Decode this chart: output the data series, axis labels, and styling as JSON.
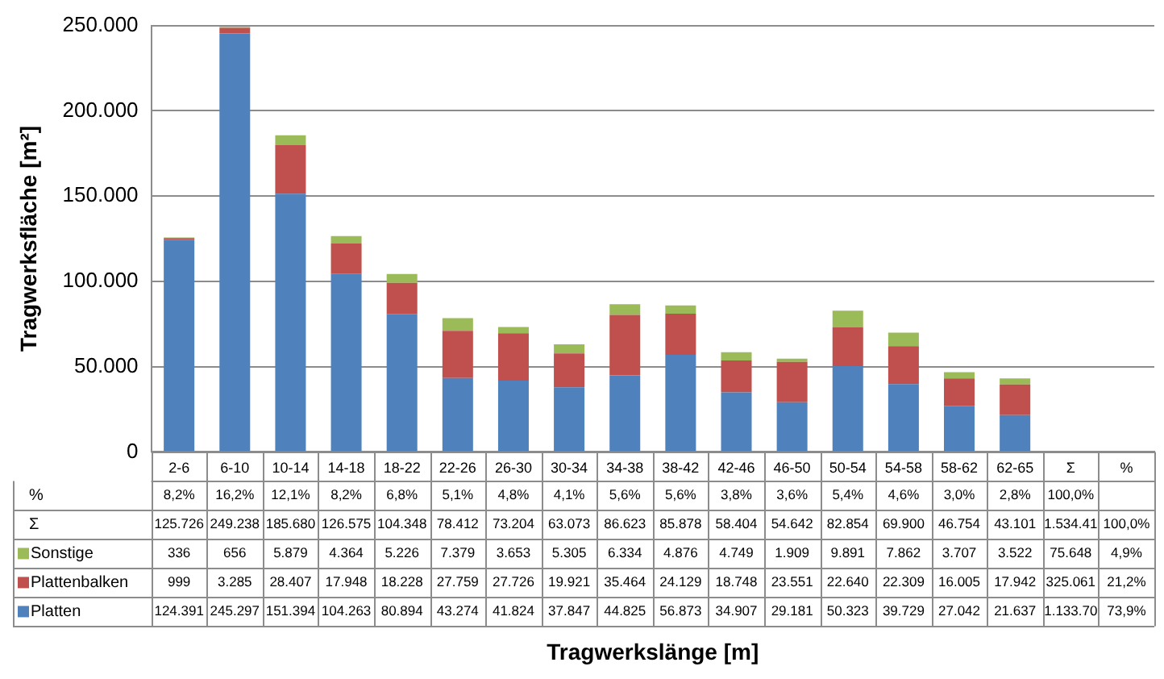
{
  "chart_data": {
    "type": "bar",
    "stacked": true,
    "ylabel": "Tragwerksfläche [m²]",
    "categories": [
      "2-6",
      "6-10",
      "10-14",
      "14-18",
      "18-22",
      "22-26",
      "26-30",
      "30-34",
      "34-38",
      "38-42",
      "42-46",
      "46-50",
      "50-54",
      "54-58",
      "58-62",
      "62-65",
      "Σ",
      "%"
    ],
    "series": [
      {
        "name": "Platten",
        "color": "#4f81bd",
        "values": [
          124391,
          245297,
          151394,
          104263,
          80894,
          43274,
          41824,
          37847,
          44825,
          56873,
          34907,
          29181,
          50323,
          39729,
          27042,
          21637,
          null,
          null
        ],
        "value_labels": [
          "124.391",
          "245.297",
          "151.394",
          "104.263",
          "80.894",
          "43.274",
          "41.824",
          "37.847",
          "44.825",
          "56.873",
          "34.907",
          "29.181",
          "50.323",
          "39.729",
          "27.042",
          "21.637",
          "1.133.70",
          "73,9%"
        ]
      },
      {
        "name": "Plattenbalken",
        "color": "#c0504d",
        "values": [
          999,
          3285,
          28407,
          17948,
          18228,
          27759,
          27726,
          19921,
          35464,
          24129,
          18748,
          23551,
          22640,
          22309,
          16005,
          17942,
          null,
          null
        ],
        "value_labels": [
          "999",
          "3.285",
          "28.407",
          "17.948",
          "18.228",
          "27.759",
          "27.726",
          "19.921",
          "35.464",
          "24.129",
          "18.748",
          "23.551",
          "22.640",
          "22.309",
          "16.005",
          "17.942",
          "325.061",
          "21,2%"
        ]
      },
      {
        "name": "Sonstige",
        "color": "#9bbb59",
        "values": [
          336,
          656,
          5879,
          4364,
          5226,
          7379,
          3653,
          5305,
          6334,
          4876,
          4749,
          1909,
          9891,
          7862,
          3707,
          3522,
          null,
          null
        ],
        "value_labels": [
          "336",
          "656",
          "5.879",
          "4.364",
          "5.226",
          "7.379",
          "3.653",
          "5.305",
          "6.334",
          "4.876",
          "4.749",
          "1.909",
          "9.891",
          "7.862",
          "3.707",
          "3.522",
          "75.648",
          "4,9%"
        ]
      }
    ],
    "annotations": [
      "%",
      "8,2%",
      "16,2%",
      "12,1%",
      "8,2%",
      "6,8%",
      "5,1%",
      "4,8%",
      "4,1%",
      "5,6%",
      "5,6%",
      "3,8%",
      "3,6%",
      "5,4%",
      "4,6%",
      "3,0%",
      "2,8%",
      "100,0%",
      "Σ",
      "125.726",
      "249.238",
      "185.680",
      "126.575",
      "104.348",
      "78.412",
      "73.204",
      "63.073",
      "86.623",
      "85.878",
      "58.404",
      "54.642",
      "82.854",
      "69.900",
      "46.754",
      "43.101",
      "1.534.41",
      "100,0%",
      "Tragwerkslänge [m]"
    ],
    "ylim": [
      0,
      250000
    ],
    "yticks": [
      0,
      {
        "value": 50000,
        "label": "50.000"
      },
      {
        "value": 100000,
        "label": "100.000"
      },
      {
        "value": 150000,
        "label": "150.000"
      },
      {
        "value": 200000,
        "label": "200.000"
      },
      {
        "value": 250000,
        "label": "250.000"
      }
    ],
    "grid": "y",
    "legend": "bottom"
  }
}
